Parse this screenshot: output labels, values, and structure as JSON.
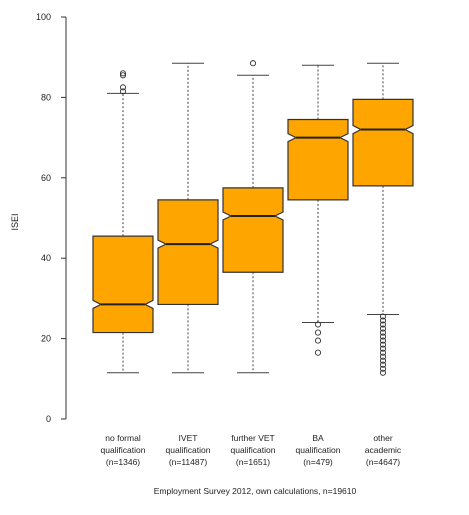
{
  "chart_data": {
    "type": "boxplot",
    "ylabel": "ISEI",
    "ylim": [
      0,
      100
    ],
    "yticks": [
      0,
      20,
      40,
      60,
      80,
      100
    ],
    "caption": "Employment Survey 2012, own calculations, n=19610",
    "fill_color": "#FFA500",
    "stroke_color": "#333333",
    "categories": [
      {
        "lines": [
          "no formal",
          "qualification",
          "(n=1346)"
        ],
        "whisker_low": 11.5,
        "q1": 21.5,
        "median": 28.5,
        "q3": 45.5,
        "whisker_high": 81,
        "outliers": [
          81.5,
          82.5,
          85.5,
          86
        ]
      },
      {
        "lines": [
          "IVET",
          "qualification",
          "(n=11487)"
        ],
        "whisker_low": 11.5,
        "q1": 28.5,
        "median": 43.5,
        "q3": 54.5,
        "whisker_high": 88.5,
        "outliers": []
      },
      {
        "lines": [
          "further VET",
          "qualification",
          "(n=1651)"
        ],
        "whisker_low": 11.5,
        "q1": 36.5,
        "median": 50.5,
        "q3": 57.5,
        "whisker_high": 85.5,
        "outliers": [
          88.5
        ]
      },
      {
        "lines": [
          "BA",
          "qualification",
          "(n=479)"
        ],
        "whisker_low": 24,
        "q1": 54.5,
        "median": 70,
        "q3": 74.5,
        "whisker_high": 88,
        "outliers": [
          16.5,
          19.5,
          21.5,
          23.5
        ]
      },
      {
        "lines": [
          "other",
          "academic",
          "(n=4647)"
        ],
        "whisker_low": 26,
        "q1": 58,
        "median": 72,
        "q3": 79.5,
        "whisker_high": 88.5,
        "outliers": [
          11.5,
          12.5,
          13.5,
          14.5,
          15.5,
          16.5,
          17.5,
          18.5,
          19.5,
          20.5,
          21.5,
          22.5,
          23.5,
          24.5,
          25.5
        ]
      }
    ]
  }
}
